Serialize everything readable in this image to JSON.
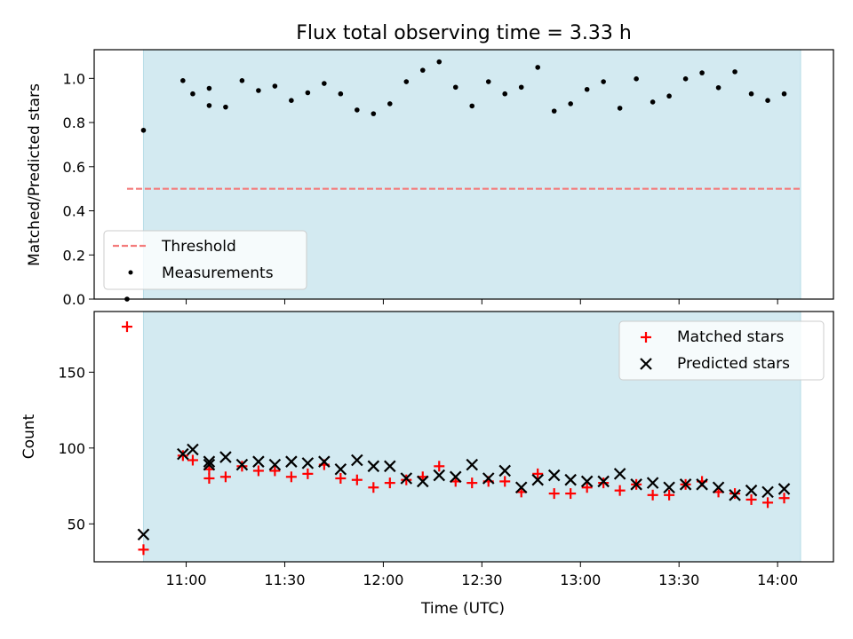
{
  "chart_data": [
    {
      "type": "scatter",
      "title": "Flux total observing time = 3.33 h",
      "ylabel": "Matched/Predicted stars",
      "xlabel": "",
      "x_axis": "time",
      "xlim": [
        "10:32",
        "14:17"
      ],
      "ylim": [
        0,
        1.13
      ],
      "yticks": [
        0.0,
        0.2,
        0.4,
        0.6,
        0.8,
        1.0
      ],
      "ytick_labels": [
        "0.0",
        "0.2",
        "0.4",
        "0.6",
        "0.8",
        "1.0"
      ],
      "xticks": [
        "11:00",
        "11:30",
        "12:00",
        "12:30",
        "13:00",
        "13:30",
        "14:00"
      ],
      "observing_window": [
        "10:47",
        "14:07"
      ],
      "observing_window_color": "#d3eaf1",
      "threshold": {
        "name": "Threshold",
        "value": 0.5,
        "x_range": [
          "10:42",
          "14:07"
        ],
        "color": "#f47c7c",
        "style": "dashed"
      },
      "legend": {
        "position": "lower-left",
        "entries": [
          "Threshold",
          "Measurements"
        ]
      },
      "series": [
        {
          "name": "Measurements",
          "marker": "dot",
          "color": "#000000",
          "points": [
            [
              "10:42",
              0.0
            ],
            [
              "10:47",
              0.765
            ],
            [
              "10:59",
              0.99
            ],
            [
              "11:02",
              0.93
            ],
            [
              "11:07",
              0.955
            ],
            [
              "11:07",
              0.877
            ],
            [
              "11:12",
              0.87
            ],
            [
              "11:17",
              0.99
            ],
            [
              "11:22",
              0.945
            ],
            [
              "11:27",
              0.965
            ],
            [
              "11:32",
              0.9
            ],
            [
              "11:37",
              0.935
            ],
            [
              "11:42",
              0.977
            ],
            [
              "11:47",
              0.93
            ],
            [
              "11:52",
              0.857
            ],
            [
              "11:57",
              0.84
            ],
            [
              "12:02",
              0.885
            ],
            [
              "12:07",
              0.985
            ],
            [
              "12:12",
              1.037
            ],
            [
              "12:17",
              1.075
            ],
            [
              "12:22",
              0.96
            ],
            [
              "12:27",
              0.875
            ],
            [
              "12:32",
              0.985
            ],
            [
              "12:37",
              0.93
            ],
            [
              "12:42",
              0.96
            ],
            [
              "12:47",
              1.05
            ],
            [
              "12:52",
              0.852
            ],
            [
              "12:57",
              0.885
            ],
            [
              "13:02",
              0.95
            ],
            [
              "13:07",
              0.985
            ],
            [
              "13:12",
              0.865
            ],
            [
              "13:17",
              0.998
            ],
            [
              "13:22",
              0.893
            ],
            [
              "13:27",
              0.92
            ],
            [
              "13:32",
              0.998
            ],
            [
              "13:37",
              1.025
            ],
            [
              "13:42",
              0.958
            ],
            [
              "13:47",
              1.03
            ],
            [
              "13:52",
              0.93
            ],
            [
              "13:57",
              0.9
            ],
            [
              "14:02",
              0.93
            ]
          ]
        }
      ]
    },
    {
      "type": "scatter",
      "title": "",
      "ylabel": "Count",
      "xlabel": "Time (UTC)",
      "x_axis": "time",
      "xlim": [
        "10:32",
        "14:17"
      ],
      "ylim": [
        25,
        190
      ],
      "yticks": [
        50,
        100,
        150
      ],
      "ytick_labels": [
        "50",
        "100",
        "150"
      ],
      "xticks": [
        "11:00",
        "11:30",
        "12:00",
        "12:30",
        "13:00",
        "13:30",
        "14:00"
      ],
      "xtick_labels": [
        "11:00",
        "11:30",
        "12:00",
        "12:30",
        "13:00",
        "13:30",
        "14:00"
      ],
      "observing_window": [
        "10:47",
        "14:07"
      ],
      "observing_window_color": "#d3eaf1",
      "legend": {
        "position": "top-right",
        "entries": [
          "Matched stars",
          "Predicted stars"
        ]
      },
      "series": [
        {
          "name": "Matched stars",
          "marker": "plus",
          "color": "#ff0000",
          "points": [
            [
              "10:42",
              180
            ],
            [
              "10:47",
              33
            ],
            [
              "10:59",
              95
            ],
            [
              "11:02",
              92
            ],
            [
              "11:07",
              80
            ],
            [
              "11:07",
              86
            ],
            [
              "11:12",
              81
            ],
            [
              "11:17",
              88
            ],
            [
              "11:22",
              85
            ],
            [
              "11:27",
              85
            ],
            [
              "11:32",
              81
            ],
            [
              "11:37",
              83
            ],
            [
              "11:42",
              89
            ],
            [
              "11:47",
              80
            ],
            [
              "11:52",
              79
            ],
            [
              "11:57",
              74
            ],
            [
              "12:02",
              77
            ],
            [
              "12:07",
              79
            ],
            [
              "12:12",
              81
            ],
            [
              "12:17",
              88
            ],
            [
              "12:22",
              78
            ],
            [
              "12:27",
              77
            ],
            [
              "12:32",
              78
            ],
            [
              "12:37",
              78
            ],
            [
              "12:42",
              71
            ],
            [
              "12:47",
              83
            ],
            [
              "12:52",
              70
            ],
            [
              "12:57",
              70
            ],
            [
              "13:02",
              74
            ],
            [
              "13:07",
              77
            ],
            [
              "13:12",
              72
            ],
            [
              "13:17",
              76
            ],
            [
              "13:22",
              69
            ],
            [
              "13:27",
              69
            ],
            [
              "13:32",
              76
            ],
            [
              "13:37",
              78
            ],
            [
              "13:42",
              71
            ],
            [
              "13:47",
              70
            ],
            [
              "13:52",
              66
            ],
            [
              "13:57",
              64
            ],
            [
              "14:02",
              67
            ]
          ]
        },
        {
          "name": "Predicted stars",
          "marker": "x",
          "color": "#000000",
          "points": [
            [
              "10:47",
              43
            ],
            [
              "10:59",
              96
            ],
            [
              "11:02",
              99
            ],
            [
              "11:07",
              91
            ],
            [
              "11:07",
              89
            ],
            [
              "11:12",
              94
            ],
            [
              "11:17",
              89
            ],
            [
              "11:22",
              91
            ],
            [
              "11:27",
              89
            ],
            [
              "11:32",
              91
            ],
            [
              "11:37",
              90
            ],
            [
              "11:42",
              91
            ],
            [
              "11:47",
              86
            ],
            [
              "11:52",
              92
            ],
            [
              "11:57",
              88
            ],
            [
              "12:02",
              88
            ],
            [
              "12:07",
              80
            ],
            [
              "12:12",
              78
            ],
            [
              "12:17",
              82
            ],
            [
              "12:22",
              81
            ],
            [
              "12:27",
              89
            ],
            [
              "12:32",
              80
            ],
            [
              "12:37",
              85
            ],
            [
              "12:42",
              74
            ],
            [
              "12:47",
              79
            ],
            [
              "12:52",
              82
            ],
            [
              "12:57",
              79
            ],
            [
              "13:02",
              78
            ],
            [
              "13:07",
              78
            ],
            [
              "13:12",
              83
            ],
            [
              "13:17",
              76
            ],
            [
              "13:22",
              77
            ],
            [
              "13:27",
              74
            ],
            [
              "13:32",
              76
            ],
            [
              "13:37",
              76
            ],
            [
              "13:42",
              74
            ],
            [
              "13:47",
              69
            ],
            [
              "13:52",
              72
            ],
            [
              "13:57",
              71
            ],
            [
              "14:02",
              73
            ]
          ]
        }
      ]
    }
  ]
}
